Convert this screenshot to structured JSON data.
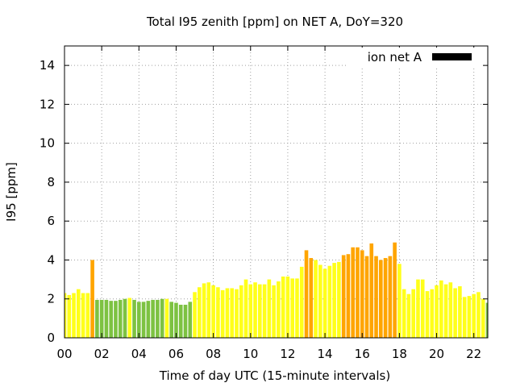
{
  "chart_data": {
    "type": "bar",
    "title": "Total I95 zenith [ppm] on NET A, DoY=320",
    "xlabel": "Time of day UTC (15-minute intervals)",
    "ylabel": "I95 [ppm]",
    "ylim": [
      0,
      15
    ],
    "xlim": [
      0,
      22.75
    ],
    "grid": true,
    "legend_position": "top-right",
    "legend": {
      "label": "ion net A",
      "color": "#000000"
    },
    "y_ticks": [
      0,
      2,
      4,
      6,
      8,
      10,
      12,
      14
    ],
    "x_ticks": [
      {
        "value": 0,
        "label": "00"
      },
      {
        "value": 2,
        "label": "02"
      },
      {
        "value": 4,
        "label": "04"
      },
      {
        "value": 6,
        "label": "06"
      },
      {
        "value": 8,
        "label": "08"
      },
      {
        "value": 10,
        "label": "10"
      },
      {
        "value": 12,
        "label": "12"
      },
      {
        "value": 14,
        "label": "14"
      },
      {
        "value": 16,
        "label": "16"
      },
      {
        "value": 18,
        "label": "18"
      },
      {
        "value": 20,
        "label": "20"
      },
      {
        "value": 22,
        "label": "22"
      }
    ],
    "bar_width_hours": 0.2,
    "colors": {
      "green": "#7dc242",
      "yellow": "#ffff1a",
      "orange": "#ffa500"
    },
    "x": [
      0,
      0.25,
      0.5,
      0.75,
      1,
      1.25,
      1.5,
      1.75,
      2,
      2.25,
      2.5,
      2.75,
      3,
      3.25,
      3.5,
      3.75,
      4,
      4.25,
      4.5,
      4.75,
      5,
      5.25,
      5.5,
      5.75,
      6,
      6.25,
      6.5,
      6.75,
      7,
      7.25,
      7.5,
      7.75,
      8,
      8.25,
      8.5,
      8.75,
      9,
      9.25,
      9.5,
      9.75,
      10,
      10.25,
      10.5,
      10.75,
      11,
      11.25,
      11.5,
      11.75,
      12,
      12.25,
      12.5,
      12.75,
      13,
      13.25,
      13.5,
      13.75,
      14,
      14.25,
      14.5,
      14.75,
      15,
      15.25,
      15.5,
      15.75,
      16,
      16.25,
      16.5,
      16.75,
      17,
      17.25,
      17.5,
      17.75,
      18,
      18.25,
      18.5,
      18.75,
      19,
      19.25,
      19.5,
      19.75,
      20,
      20.25,
      20.5,
      20.75,
      21,
      21.25,
      21.5,
      21.75,
      22,
      22.25,
      22.5,
      22.75
    ],
    "values": [
      2.3,
      2.2,
      2.3,
      2.5,
      2.3,
      2.3,
      4.0,
      1.95,
      1.95,
      1.95,
      1.9,
      1.9,
      1.95,
      2.0,
      2.05,
      1.95,
      1.85,
      1.85,
      1.9,
      1.95,
      1.95,
      2.0,
      2.0,
      1.85,
      1.8,
      1.7,
      1.7,
      1.85,
      2.35,
      2.6,
      2.8,
      2.85,
      2.7,
      2.6,
      2.45,
      2.55,
      2.55,
      2.5,
      2.7,
      3.0,
      2.75,
      2.85,
      2.75,
      2.75,
      3.0,
      2.7,
      2.9,
      3.15,
      3.15,
      3.05,
      3.05,
      3.65,
      4.5,
      4.1,
      4.0,
      3.75,
      3.55,
      3.7,
      3.85,
      3.9,
      4.25,
      4.3,
      4.65,
      4.65,
      4.5,
      4.2,
      4.85,
      4.2,
      4.0,
      4.1,
      4.2,
      4.9,
      3.8,
      2.5,
      2.25,
      2.5,
      3.0,
      3.0,
      2.4,
      2.5,
      2.7,
      2.95,
      2.75,
      2.85,
      2.55,
      2.65,
      2.1,
      2.15,
      2.25,
      2.35,
      2.0,
      1.8
    ],
    "bar_colors": [
      "yellow",
      "yellow",
      "yellow",
      "yellow",
      "yellow",
      "yellow",
      "orange",
      "green",
      "green",
      "green",
      "green",
      "green",
      "green",
      "green",
      "yellow",
      "green",
      "green",
      "green",
      "green",
      "green",
      "green",
      "green",
      "yellow",
      "green",
      "green",
      "green",
      "green",
      "green",
      "yellow",
      "yellow",
      "yellow",
      "yellow",
      "yellow",
      "yellow",
      "yellow",
      "yellow",
      "yellow",
      "yellow",
      "yellow",
      "yellow",
      "yellow",
      "yellow",
      "yellow",
      "yellow",
      "yellow",
      "yellow",
      "yellow",
      "yellow",
      "yellow",
      "yellow",
      "yellow",
      "yellow",
      "orange",
      "orange",
      "yellow",
      "yellow",
      "yellow",
      "yellow",
      "yellow",
      "yellow",
      "orange",
      "orange",
      "orange",
      "orange",
      "orange",
      "orange",
      "orange",
      "orange",
      "orange",
      "orange",
      "orange",
      "orange",
      "yellow",
      "yellow",
      "yellow",
      "yellow",
      "yellow",
      "yellow",
      "yellow",
      "yellow",
      "yellow",
      "yellow",
      "yellow",
      "yellow",
      "yellow",
      "yellow",
      "yellow",
      "yellow",
      "yellow",
      "yellow",
      "yellow",
      "green"
    ]
  }
}
